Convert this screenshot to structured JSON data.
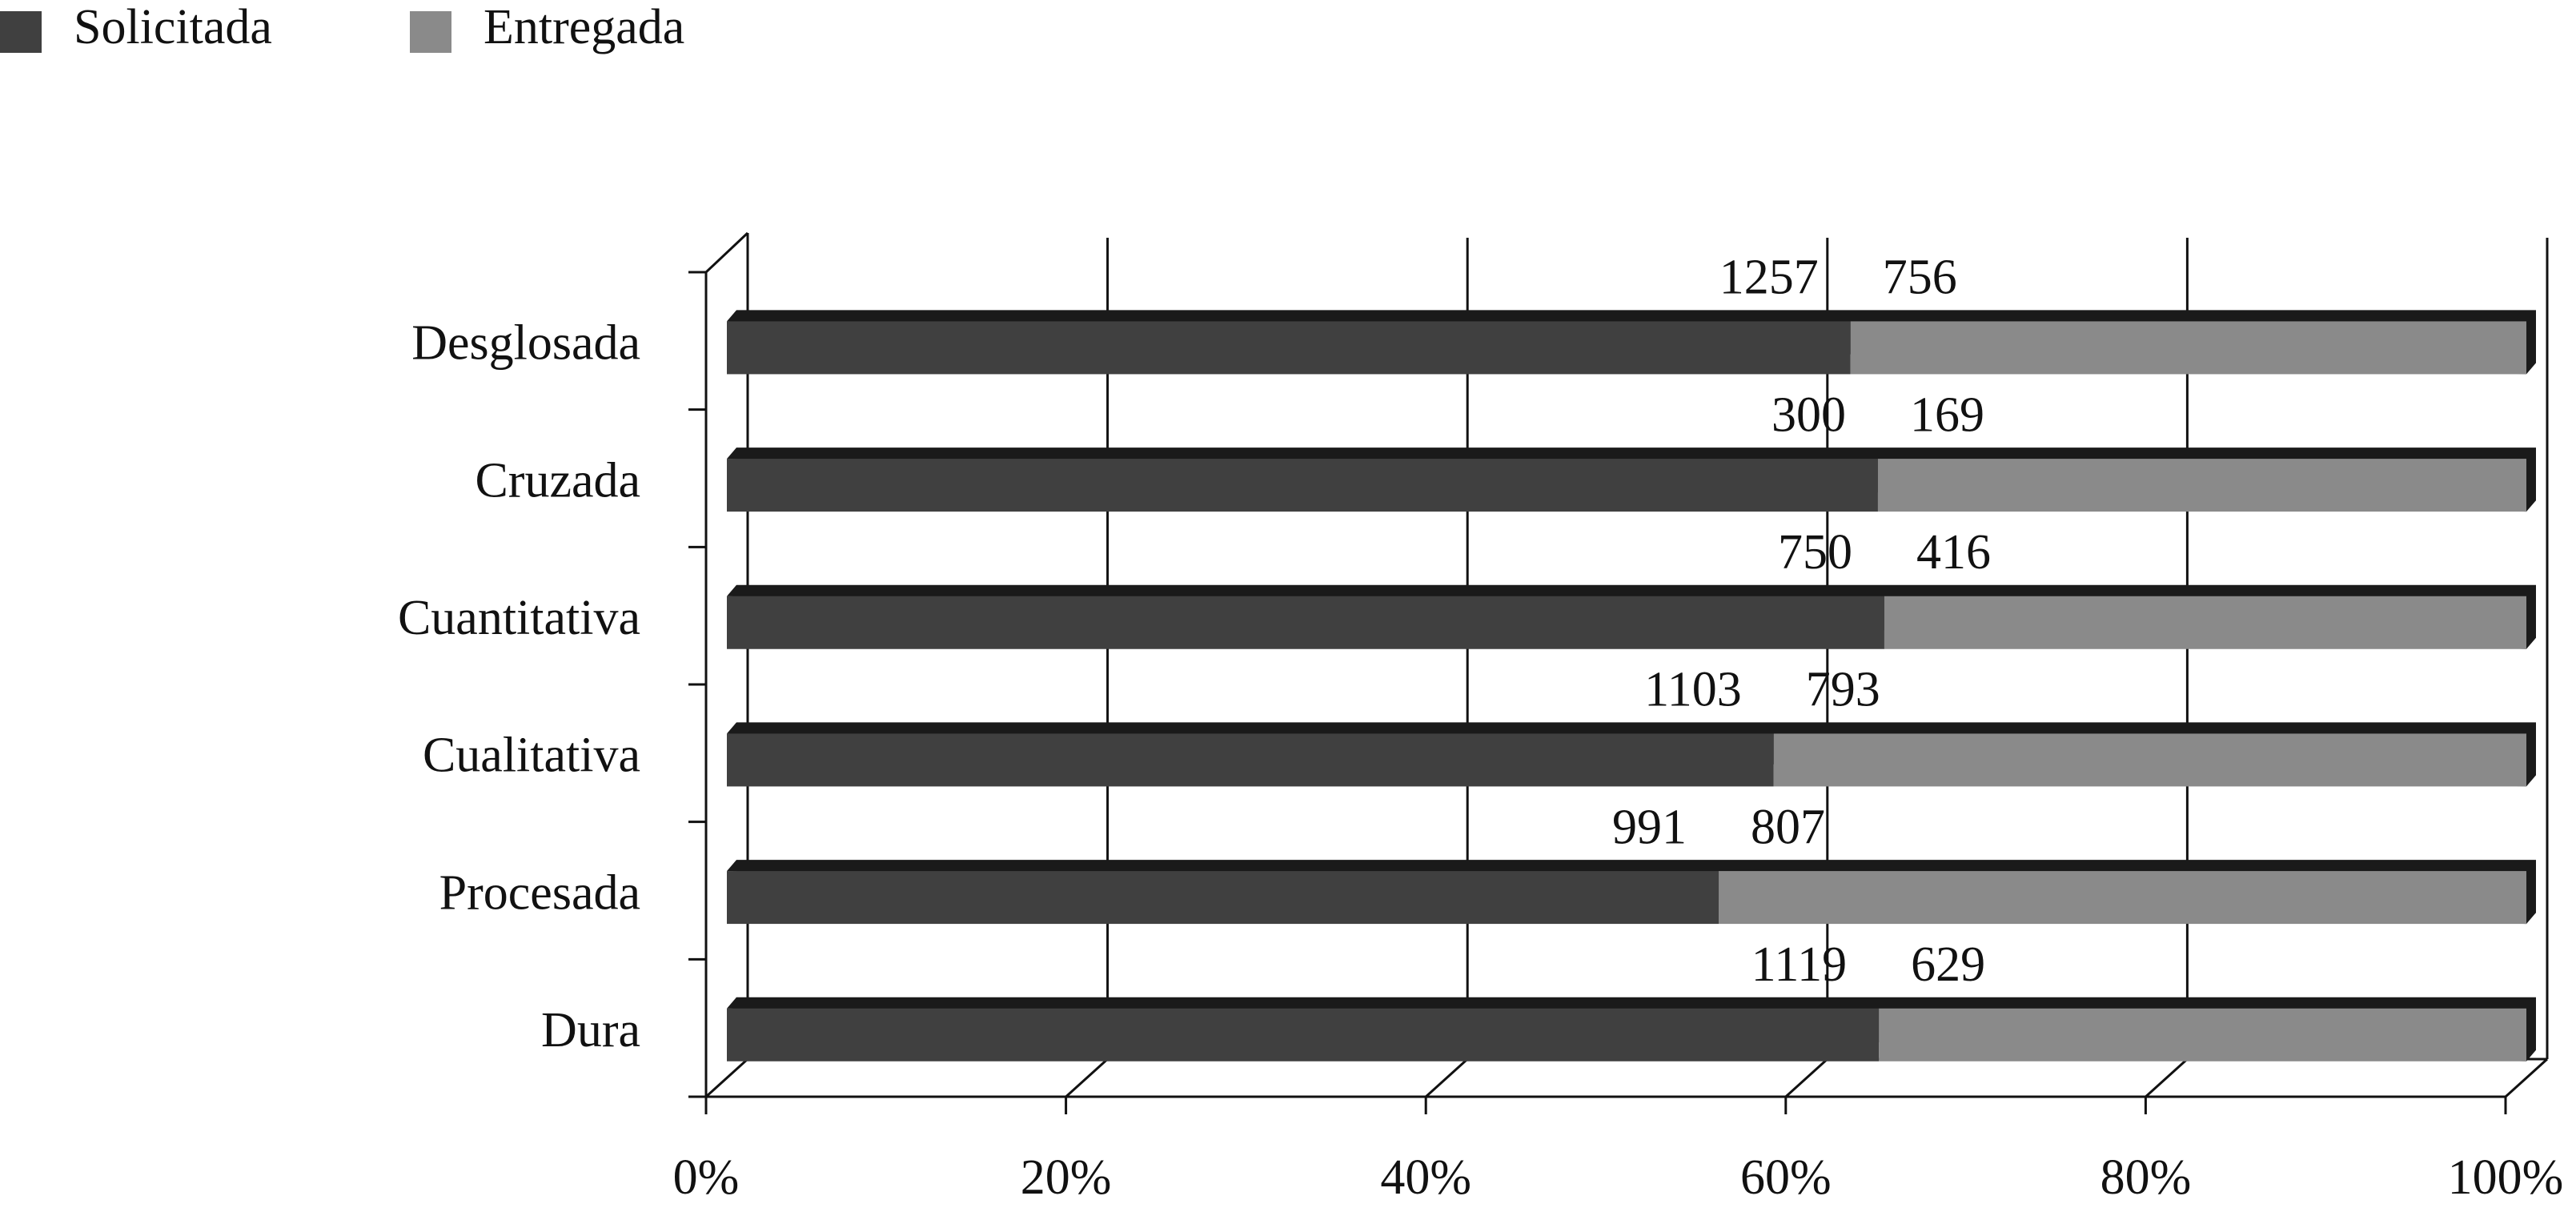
{
  "chart_data": {
    "type": "bar",
    "orientation": "horizontal",
    "stacked": "percent",
    "categories": [
      "Desglosada",
      "Cruzada",
      "Cuantitativa",
      "Cualitativa",
      "Procesada",
      "Dura"
    ],
    "series": [
      {
        "name": "Solicitada",
        "color": "#404040",
        "values": [
          1257,
          300,
          750,
          1103,
          991,
          1119
        ]
      },
      {
        "name": "Entregada",
        "color": "#8a8a8a",
        "values": [
          756,
          169,
          416,
          793,
          807,
          629
        ]
      }
    ],
    "xlim": [
      0,
      100
    ],
    "xticks": [
      {
        "value": 0,
        "label": "0%"
      },
      {
        "value": 20,
        "label": "20%"
      },
      {
        "value": 40,
        "label": "40%"
      },
      {
        "value": 60,
        "label": "60%"
      },
      {
        "value": 80,
        "label": "80%"
      },
      {
        "value": 100,
        "label": "100%"
      }
    ],
    "grid": true,
    "legend": "top-left"
  }
}
